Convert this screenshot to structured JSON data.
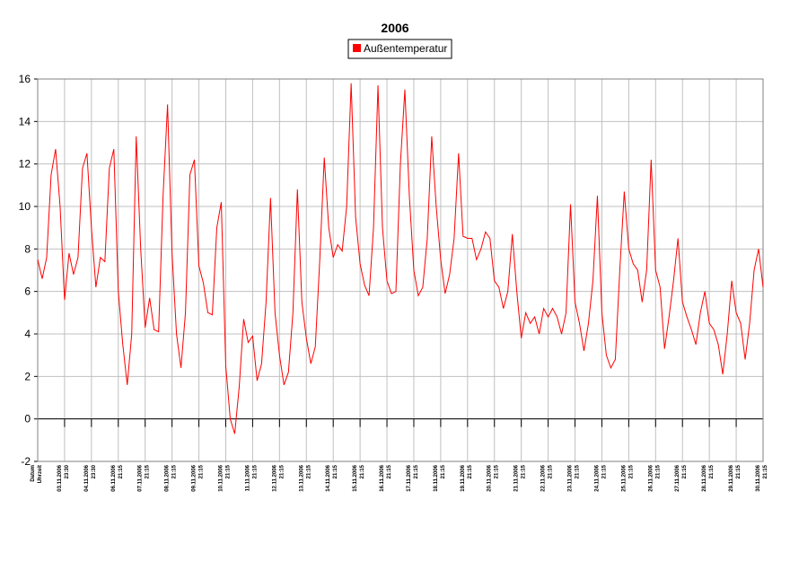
{
  "chart_data": {
    "type": "line",
    "title": "2006",
    "x_labels": [
      [
        "Datum",
        "Uhrzeit"
      ],
      [
        "03.11.2006",
        "23:30"
      ],
      [
        "04.11.2006",
        "23:30"
      ],
      [
        "06.11.2006",
        "21:15"
      ],
      [
        "07.11.2006",
        "21:15"
      ],
      [
        "08.11.2006",
        "21:15"
      ],
      [
        "09.11.2006",
        "21:15"
      ],
      [
        "10.11.2006",
        "21:15"
      ],
      [
        "11.11.2006",
        "21:15"
      ],
      [
        "12.11.2006",
        "21:15"
      ],
      [
        "13.11.2006",
        "21:15"
      ],
      [
        "14.11.2006",
        "21:15"
      ],
      [
        "15.11.2006",
        "21:15"
      ],
      [
        "16.11.2006",
        "21:15"
      ],
      [
        "17.11.2006",
        "21:15"
      ],
      [
        "18.11.2006",
        "21:15"
      ],
      [
        "19.11.2006",
        "21:15"
      ],
      [
        "20.11.2006",
        "21:15"
      ],
      [
        "21.11.2006",
        "21:15"
      ],
      [
        "22.11.2006",
        "21:15"
      ],
      [
        "23.11.2006",
        "21:15"
      ],
      [
        "24.11.2006",
        "21:15"
      ],
      [
        "25.11.2006",
        "21:15"
      ],
      [
        "26.11.2006",
        "21:15"
      ],
      [
        "27.11.2006",
        "21:15"
      ],
      [
        "28.11.2006",
        "21:15"
      ],
      [
        "29.11.2006",
        "21:15"
      ],
      [
        "30.11.2006",
        "21:15"
      ]
    ],
    "series": [
      {
        "name": "Außentemperatur",
        "color": "#ff0000",
        "values": [
          7.5,
          6.6,
          7.6,
          11.5,
          12.7,
          10,
          5.6,
          7.8,
          6.8,
          7.6,
          11.8,
          12.5,
          9,
          6.2,
          7.6,
          7.4,
          11.8,
          12.7,
          6,
          3.5,
          1.6,
          4,
          13.3,
          8,
          4.3,
          5.7,
          4.2,
          4.1,
          10.5,
          14.8,
          7.8,
          4,
          2.4,
          5,
          11.5,
          12.2,
          7.2,
          6.4,
          5,
          4.9,
          9,
          10.2,
          2.5,
          0,
          -0.7,
          1.5,
          4.7,
          3.6,
          3.9,
          1.8,
          2.6,
          5.5,
          10.4,
          5,
          3,
          1.6,
          2.2,
          5,
          10.8,
          5.5,
          3.8,
          2.6,
          3.4,
          7.5,
          12.3,
          9,
          7.6,
          8.2,
          7.9,
          10,
          15.8,
          9.5,
          7.3,
          6.3,
          5.8,
          9,
          15.7,
          9,
          6.5,
          5.9,
          6,
          12,
          15.5,
          10.5,
          7,
          5.8,
          6.2,
          8.5,
          13.3,
          10,
          7.5,
          5.9,
          6.8,
          8.5,
          12.5,
          8.6,
          8.5,
          8.5,
          7.5,
          8,
          8.8,
          8.5,
          6.5,
          6.2,
          5.2,
          6,
          8.7,
          6,
          3.8,
          5,
          4.5,
          4.8,
          4,
          5.2,
          4.8,
          5.2,
          4.8,
          4,
          5,
          10.1,
          5.5,
          4.5,
          3.2,
          4.5,
          6.5,
          10.5,
          5,
          3,
          2.4,
          2.8,
          7,
          10.7,
          8,
          7.3,
          7,
          5.5,
          7,
          12.2,
          7,
          6.2,
          3.3,
          4.8,
          6.5,
          8.5,
          5.5,
          4.8,
          4.2,
          3.5,
          5,
          6,
          4.5,
          4.2,
          3.5,
          2.1,
          4,
          6.5,
          5,
          4.5,
          2.8,
          4.5,
          7,
          8,
          6.2
        ]
      }
    ],
    "ylim": [
      -2,
      16
    ],
    "yticks": [
      -2,
      0,
      2,
      4,
      6,
      8,
      10,
      12,
      14,
      16
    ],
    "grid": true
  }
}
